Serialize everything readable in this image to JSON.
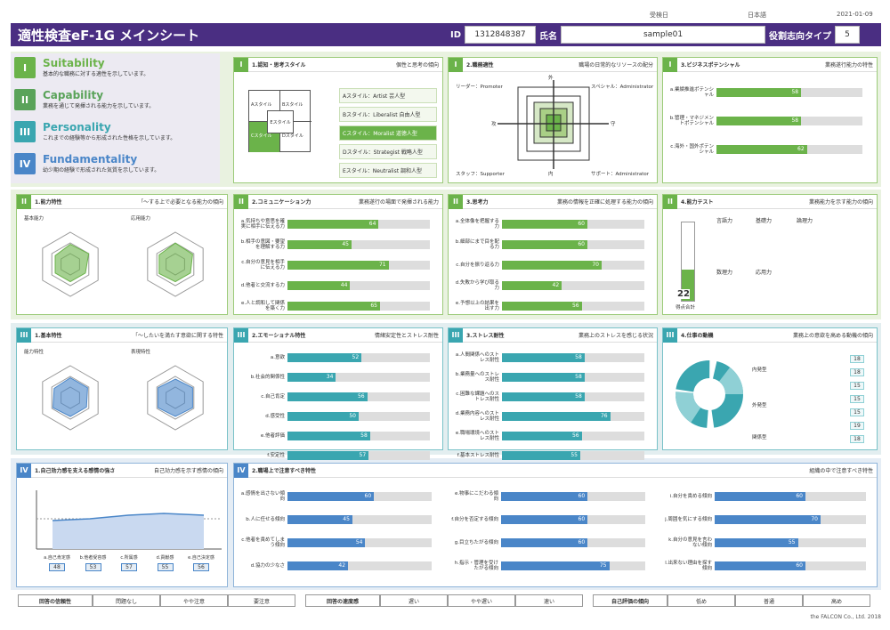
{
  "header": {
    "title": "適性検査eF-1G メインシート",
    "id_label": "ID",
    "id_value": "1312848387",
    "name_label": "氏名",
    "name_value": "sample01",
    "type_label": "役割志向タイプ",
    "type_value": "5"
  },
  "top": {
    "left": "受検日",
    "mid": "日本語",
    "date": "2021-01-09"
  },
  "legend": [
    {
      "num": "I",
      "name": "Suitability",
      "desc": "基本的な職務に対する適性を示しています。",
      "color": "#6bb34a"
    },
    {
      "num": "II",
      "name": "Capability",
      "desc": "業務を通じて発揮される能力を示しています。",
      "color": "#5aa35a"
    },
    {
      "num": "III",
      "name": "Personality",
      "desc": "これまでの経験等から形成された性格を示しています。",
      "color": "#3aa6b0"
    },
    {
      "num": "IV",
      "name": "Fundamentality",
      "desc": "幼少期の経験で形成された気質を示しています。",
      "color": "#4a86c8"
    }
  ],
  "p1": {
    "num": "I",
    "title": "1.認知・思考スタイル",
    "sub": "個性と思考の傾向",
    "styles": [
      "Aスタイル：Artist 芸人型",
      "Bスタイル：Liberalist 自由人型",
      "Cスタイル：Moralist 道徳人型",
      "Dスタイル：Strategist 戦略人型",
      "Eスタイル：Neutralist 調和人型"
    ],
    "quad": [
      "Aスタイル",
      "Bスタイル",
      "Cスタイル",
      "Dスタイル",
      "Eスタイル"
    ]
  },
  "p2": {
    "num": "I",
    "title": "2.職務適性",
    "sub": "職場の日常的なリソースの配分",
    "corners": [
      "リーダー：Promoter",
      "スペシャル：Administrator",
      "スタッフ：Supporter",
      "サポート：Administrator"
    ],
    "axes": [
      "外",
      "内",
      "攻",
      "守"
    ]
  },
  "p3": {
    "num": "I",
    "title": "3.ビジネスポテンシャル",
    "sub": "業務遂行能力の特性",
    "rows": [
      {
        "l": "a.業績推進ポテンシャル",
        "v": "58",
        "p": 0.58
      },
      {
        "l": "b.管理・マネジメントポテンシャル",
        "v": "58",
        "p": 0.58
      },
      {
        "l": "c.海外・国外ポテンシャル",
        "v": "62",
        "p": 0.62
      }
    ]
  },
  "p4": {
    "num": "II",
    "title": "1.能力特性",
    "sub": "「～する上で必要となる能力の傾向",
    "r1": "基本能力",
    "r2": "応用能力",
    "v1": [
      "67",
      "70",
      "48",
      "46",
      "48",
      "49"
    ],
    "v2": [
      "72",
      "66",
      "49",
      "45",
      "54",
      "52"
    ]
  },
  "p5": {
    "num": "II",
    "title": "2.コミュニケーション力",
    "sub": "業務遂行の場面で発揮される能力",
    "rows": [
      {
        "l": "a.気持ちや意思を確実に相手に伝える力",
        "v": "64",
        "p": 0.64
      },
      {
        "l": "b.相手の意図・要望を理解する力",
        "v": "45",
        "p": 0.45
      },
      {
        "l": "c.自分の意見を相手に伝える力",
        "v": "71",
        "p": 0.71
      },
      {
        "l": "d.他者と交流する力",
        "v": "44",
        "p": 0.44
      },
      {
        "l": "e.人と調和して関係を築く力",
        "v": "65",
        "p": 0.65
      }
    ],
    "tag": "普通点"
  },
  "p6": {
    "num": "II",
    "title": "3.思考力",
    "sub": "業務の情報を正確に処理する能力の傾向",
    "rows": [
      {
        "l": "a.全体像を把握する力",
        "v": "60",
        "p": 0.6
      },
      {
        "l": "b.細部にまで目を配る力",
        "v": "60",
        "p": 0.6
      },
      {
        "l": "c.自分を振り返る力",
        "v": "70",
        "p": 0.7
      },
      {
        "l": "d.失敗から学び取る力",
        "v": "42",
        "p": 0.42
      },
      {
        "l": "e.予想以上の結果を出す力",
        "v": "56",
        "p": 0.56
      }
    ]
  },
  "p7": {
    "num": "II",
    "title": "4.能力テスト",
    "sub": "業務能力を示す能力の傾向",
    "score": "22",
    "score_label": "得点合計",
    "h": [
      "言語力",
      "基礎力",
      "論理力",
      "数理力",
      "応用力"
    ]
  },
  "p8": {
    "num": "III",
    "title": "1.基本特性",
    "sub": "「～したいを満たす意欲に関する特性",
    "r1": "能力特性",
    "r2": "表現特性"
  },
  "p9": {
    "num": "III",
    "title": "2.エモーショナル特性",
    "sub": "情緒安定性とストレス耐性",
    "rows": [
      {
        "l": "a.意欲",
        "v": "52",
        "p": 0.52
      },
      {
        "l": "b.社会的関係性",
        "v": "34",
        "p": 0.34
      },
      {
        "l": "c.自己肯定",
        "v": "56",
        "p": 0.56
      },
      {
        "l": "d.感受性",
        "v": "50",
        "p": 0.5
      },
      {
        "l": "e.他者評価",
        "v": "58",
        "p": 0.58
      },
      {
        "l": "f.安定性",
        "v": "57",
        "p": 0.57
      }
    ]
  },
  "p10": {
    "num": "III",
    "title": "3.ストレス耐性",
    "sub": "業務上のストレスを感じる状況",
    "rows": [
      {
        "l": "a.人間関係へのストレス耐性",
        "v": "58",
        "p": 0.58
      },
      {
        "l": "b.業務量へのストレス耐性",
        "v": "58",
        "p": 0.58
      },
      {
        "l": "c.困難な課題へのストレス耐性",
        "v": "58",
        "p": 0.58
      },
      {
        "l": "d.業務内容へのストレス耐性",
        "v": "76",
        "p": 0.76
      },
      {
        "l": "e.職場環境へのストレス耐性",
        "v": "56",
        "p": 0.56
      },
      {
        "l": "f.基本ストレス耐性",
        "v": "55",
        "p": 0.55
      }
    ]
  },
  "p11": {
    "num": "III",
    "title": "4.仕事の動機",
    "sub": "業務上の意欲を高める動機の傾向",
    "groups": [
      "内発型",
      "外発型",
      "関係型"
    ],
    "vals": [
      "18",
      "18",
      "15",
      "15",
      "15",
      "19",
      "18"
    ]
  },
  "p12": {
    "num": "IV",
    "title": "1.自己効力感を支える感情の強さ",
    "sub": "自己効力感を示す感情の傾向",
    "labels": [
      "a.自己肯定感",
      "b.他者受容感",
      "c.所属感",
      "d.貢献感",
      "e.自己決定感"
    ],
    "vals": [
      "48",
      "53",
      "57",
      "55",
      "56"
    ]
  },
  "p13": {
    "num": "IV",
    "title": "2.職場上で注意すべき特性",
    "sub": "組織の中で注意すべき特性",
    "c1": [
      {
        "l": "a.感情を出さない傾向",
        "v": "60",
        "p": 0.6
      },
      {
        "l": "b.人に任せる傾向",
        "v": "45",
        "p": 0.45
      },
      {
        "l": "c.他者を責めてしまう傾向",
        "v": "54",
        "p": 0.54
      },
      {
        "l": "d.協力の少なさ",
        "v": "42",
        "p": 0.42
      }
    ],
    "c2": [
      {
        "l": "e.物事にこだわる傾向",
        "v": "60",
        "p": 0.6
      },
      {
        "l": "f.自分を否定する傾向",
        "v": "60",
        "p": 0.6
      },
      {
        "l": "g.目立ちたがる傾向",
        "v": "60",
        "p": 0.6
      },
      {
        "l": "h.指示・管理を受けたがる傾向",
        "v": "75",
        "p": 0.75
      }
    ],
    "c3": [
      {
        "l": "i.自分を責める傾向",
        "v": "60",
        "p": 0.6
      },
      {
        "l": "j.周囲を気にする傾向",
        "v": "70",
        "p": 0.7
      },
      {
        "l": "k.自分の意見を言わない傾向",
        "v": "55",
        "p": 0.55
      },
      {
        "l": "l.出来ない理由を探す傾向",
        "v": "60",
        "p": 0.6
      }
    ]
  },
  "bottom": [
    "回答の信頼性",
    "問題なし",
    "やや注意",
    "要注意",
    "回答の速度感",
    "遅い",
    "やや遅い",
    "速い",
    "自己評価の傾向",
    "低め",
    "普通",
    "高め"
  ],
  "footer": "the FALCON Co., Ltd. 2018"
}
